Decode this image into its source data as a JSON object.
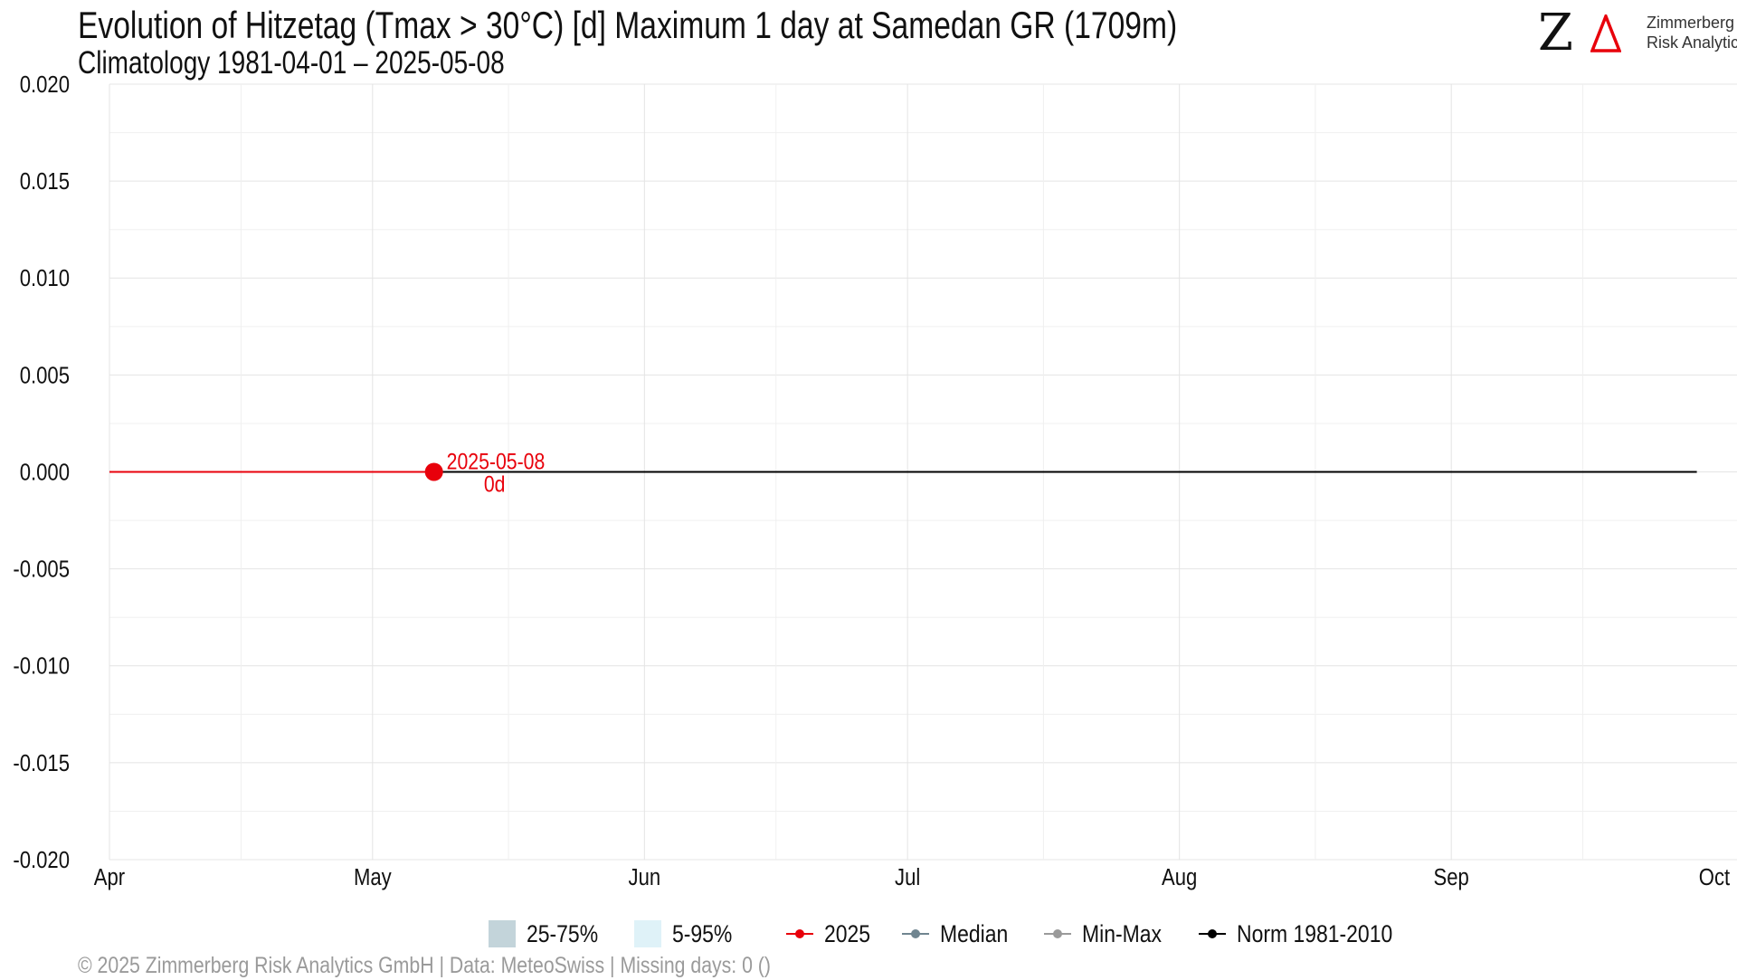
{
  "header": {
    "title": "Evolution of Hitzetag (Tmax > 30°C) [d] Maximum 1 day at Samedan  GR (1709m)",
    "subtitle": "Climatology 1981-04-01 – 2025-05-08"
  },
  "logo": {
    "mark": "Z",
    "line1": "Zimmerberg",
    "line2": "Risk Analytics",
    "accent_color": "#e8000b"
  },
  "footer": {
    "text": "©  2025 Zimmerberg Risk Analytics GmbH | Data: MeteoSwiss | Missing days: 0 ()"
  },
  "chart_data": {
    "type": "line",
    "title": "Evolution of Hitzetag (Tmax > 30°C) [d] Maximum 1 day at Samedan  GR (1709m)",
    "subtitle": "Climatology 1981-04-01 – 2025-05-08",
    "xlabel": "",
    "ylabel": "",
    "x_range": [
      "2025-04-01",
      "2025-10-01"
    ],
    "x_ticks": [
      {
        "date": "2025-04-01",
        "label": "Apr"
      },
      {
        "date": "2025-05-01",
        "label": "May"
      },
      {
        "date": "2025-06-01",
        "label": "Jun"
      },
      {
        "date": "2025-07-01",
        "label": "Jul"
      },
      {
        "date": "2025-08-01",
        "label": "Aug"
      },
      {
        "date": "2025-09-01",
        "label": "Sep"
      },
      {
        "date": "2025-10-01",
        "label": "Oct"
      }
    ],
    "ylim": [
      -0.02,
      0.02
    ],
    "y_ticks": [
      "-0.020",
      "-0.015",
      "-0.010",
      "-0.005",
      "0.000",
      "0.005",
      "0.010",
      "0.015",
      "0.020"
    ],
    "grid": true,
    "legend_position": "bottom",
    "legend": [
      {
        "label": "25-75%",
        "kind": "band",
        "color": "#c3d4da"
      },
      {
        "label": "5-95%",
        "kind": "band",
        "color": "#dff2f8"
      },
      {
        "label": "2025",
        "kind": "line",
        "color": "#e8000b"
      },
      {
        "label": "Median",
        "kind": "line",
        "color": "#708590"
      },
      {
        "label": "Min-Max",
        "kind": "line",
        "color": "#9a9a9a"
      },
      {
        "label": "Norm 1981-2010",
        "kind": "line",
        "color": "#000000"
      }
    ],
    "series": [
      {
        "name": "Norm 1981-2010",
        "color": "#000000",
        "points": [
          {
            "x": "2025-04-01",
            "y": 0
          },
          {
            "x": "2025-09-29",
            "y": 0
          }
        ]
      },
      {
        "name": "2025",
        "color": "#e8000b",
        "points": [
          {
            "x": "2025-04-01",
            "y": 0
          },
          {
            "x": "2025-05-08",
            "y": 0
          }
        ]
      }
    ],
    "annotation": {
      "date_label": "2025-05-08",
      "value_label": "0d",
      "x": "2025-05-08",
      "y": 0,
      "color": "#e8000b"
    }
  }
}
